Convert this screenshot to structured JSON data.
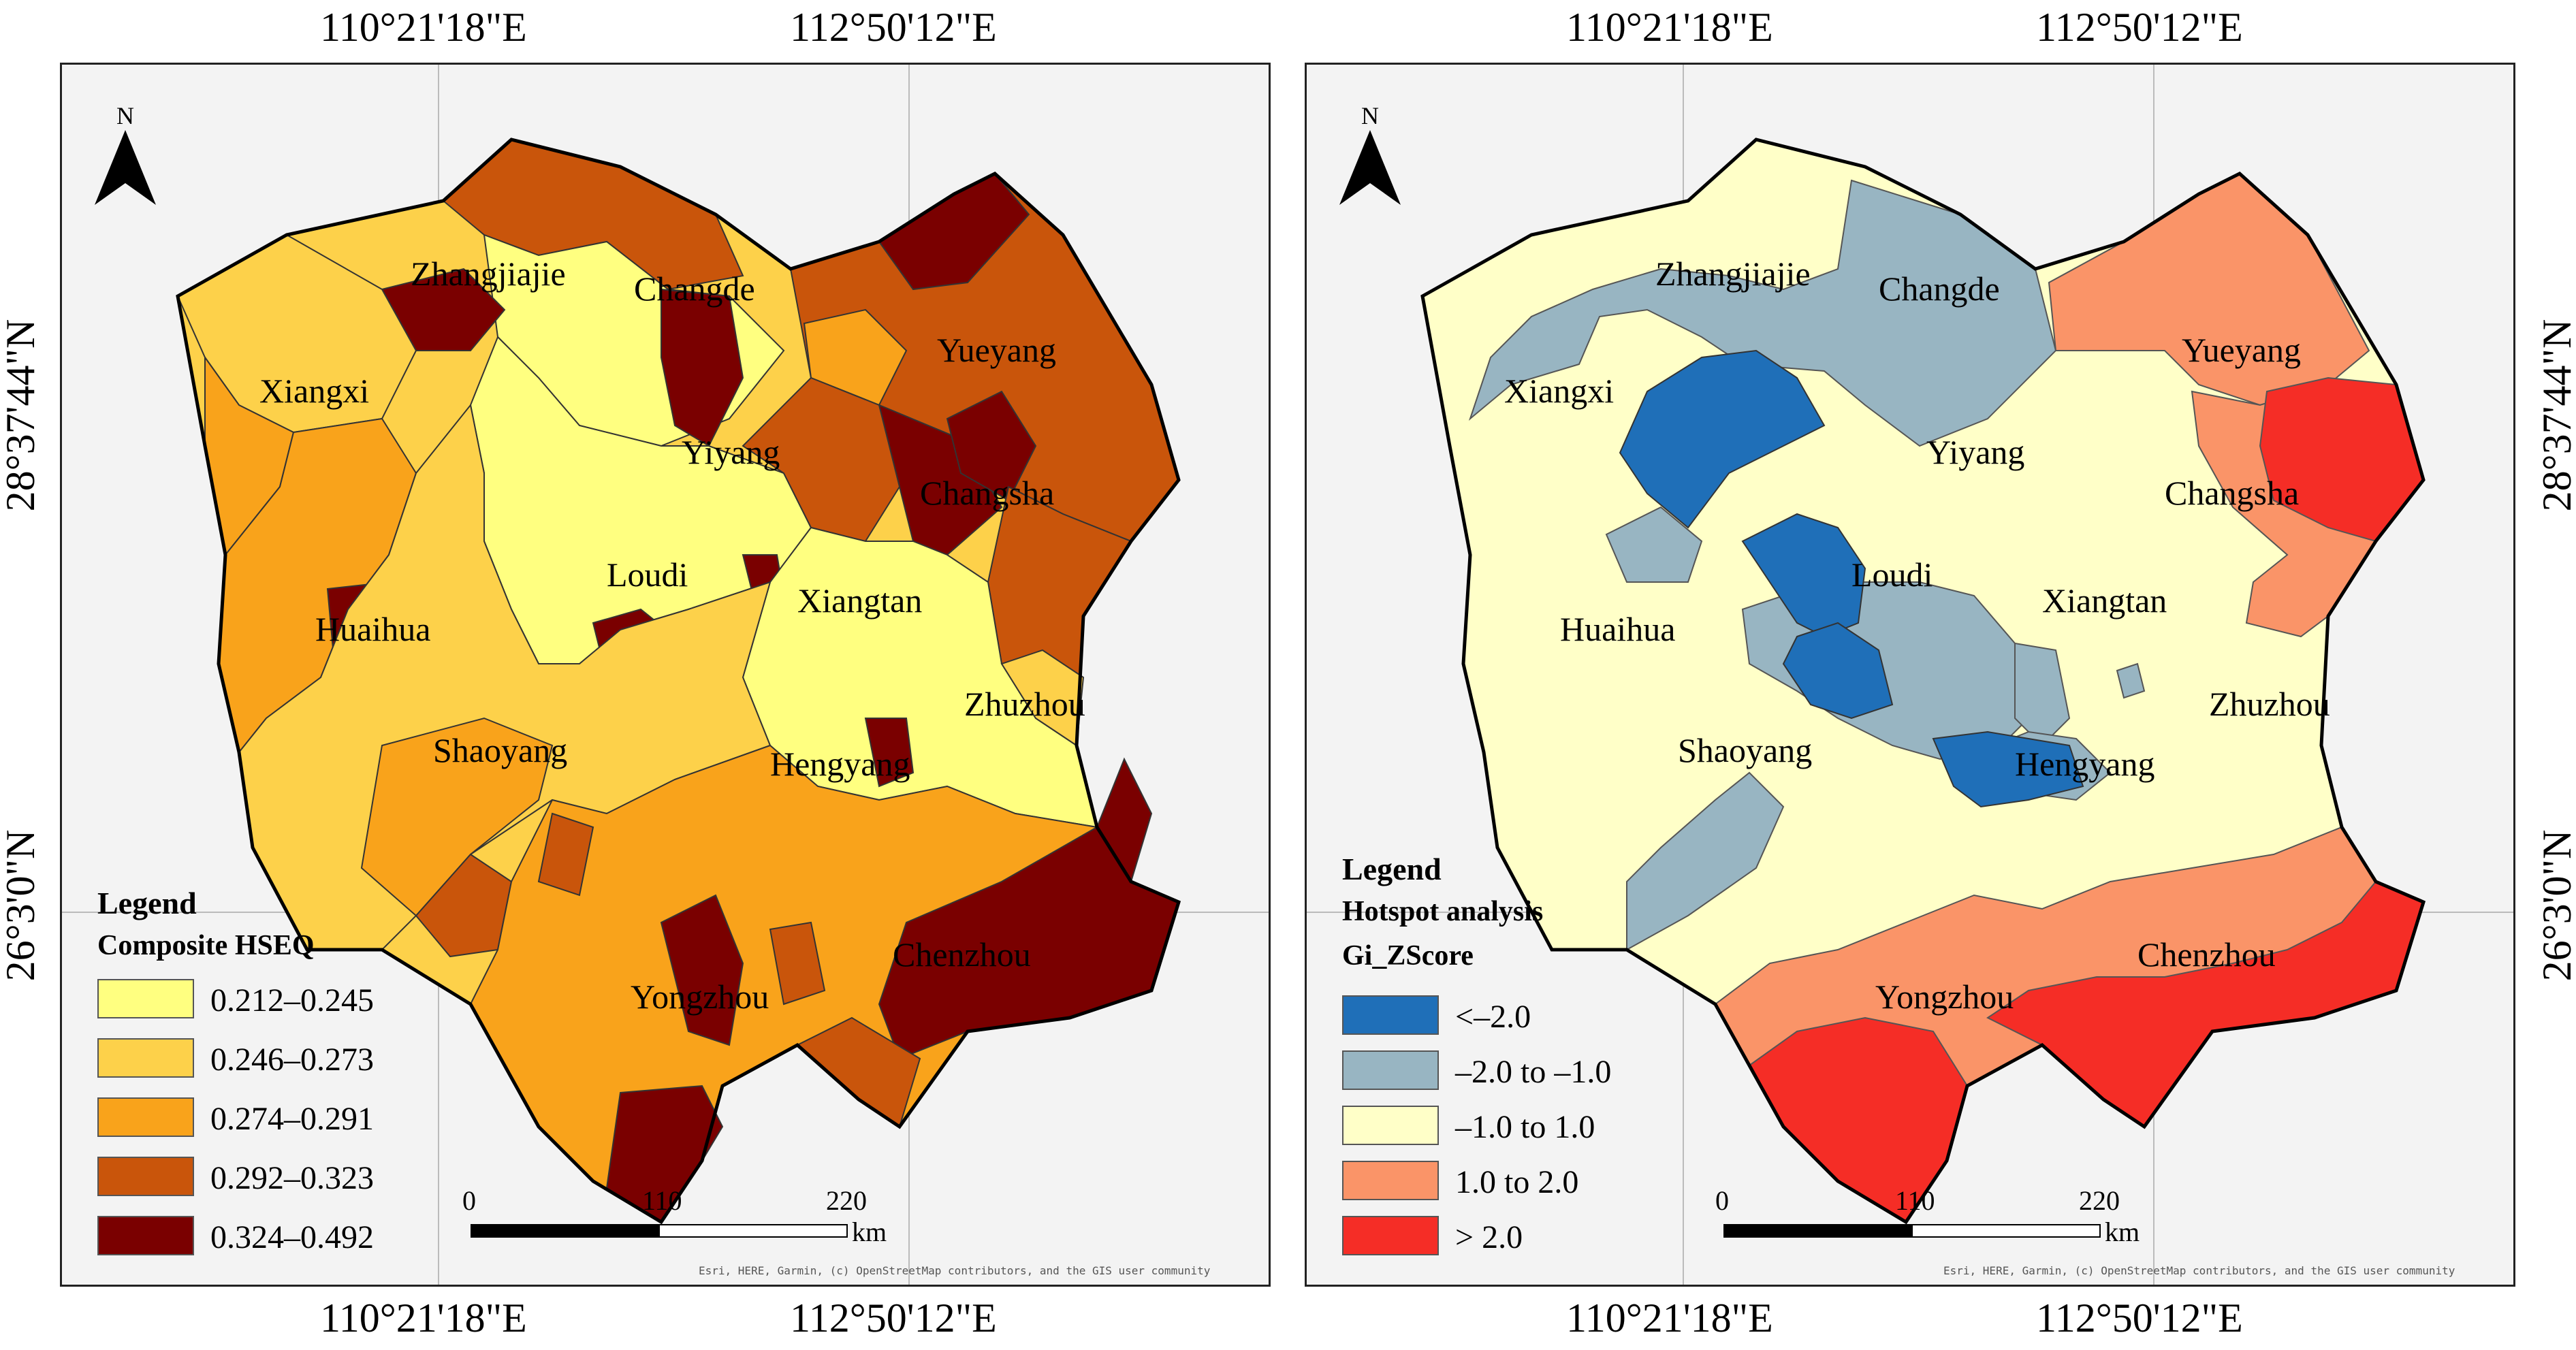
{
  "coordinates": {
    "lon_left": "110°21'18\"E",
    "lon_right": "112°50'12\"E",
    "lat_upper": "28°37'44\"N",
    "lat_lower": "26°3'0\"N"
  },
  "north_label": "N",
  "cities": [
    "Zhangjiajie",
    "Changde",
    "Xiangxi",
    "Yueyang",
    "Yiyang",
    "Changsha",
    "Loudi",
    "Huaihua",
    "Xiangtan",
    "Zhuzhou",
    "Shaoyang",
    "Hengyang",
    "Chenzhou",
    "Yongzhou"
  ],
  "scale": {
    "ticks": [
      "0",
      "110",
      "220"
    ],
    "unit": "km"
  },
  "attribution": "Esri, HERE, Garmin, (c) OpenStreetMap contributors, and the GIS user community",
  "left_map": {
    "legend_title": "Legend",
    "legend_subtitle": "Composite HSEQ",
    "classes": [
      {
        "label": "0.212–0.245",
        "color": "#ffff80"
      },
      {
        "label": "0.246–0.273",
        "color": "#fdd14a"
      },
      {
        "label": "0.274–0.291",
        "color": "#f9a31b"
      },
      {
        "label": "0.292–0.323",
        "color": "#c9550b"
      },
      {
        "label": "0.324–0.492",
        "color": "#7a0000"
      }
    ]
  },
  "right_map": {
    "legend_title": "Legend",
    "legend_subtitle1": "Hotspot analysis",
    "legend_subtitle2": "Gi_ZScore",
    "classes": [
      {
        "label": "<–2.0",
        "color": "#1f6fb8"
      },
      {
        "label": "–2.0  to –1.0",
        "color": "#98b5c2"
      },
      {
        "label": "–1.0 to 1.0",
        "color": "#ffffc8"
      },
      {
        "label": "1.0 to 2.0",
        "color": "#fa9468"
      },
      {
        "label": "> 2.0",
        "color": "#f52d26"
      }
    ]
  }
}
